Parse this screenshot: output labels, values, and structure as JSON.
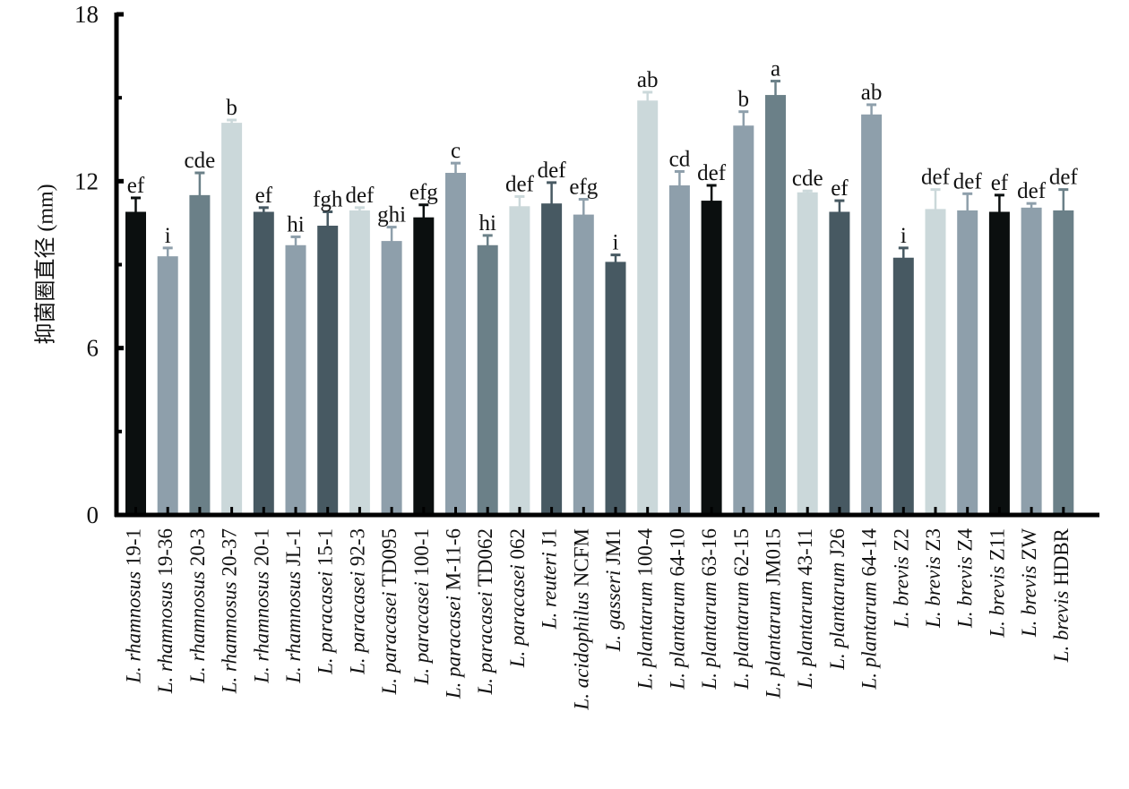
{
  "chart_data": {
    "type": "bar",
    "title": "",
    "xlabel": "",
    "ylabel": "抑菌圈直径 (mm)",
    "ylim": [
      0,
      18
    ],
    "yticks": [
      0,
      6,
      12,
      18
    ],
    "yminor_ticks": [
      3,
      9,
      15
    ],
    "grid": false,
    "legend": "none",
    "categories": [
      {
        "genus": "L.",
        "species": "rhamnosus",
        "strain": "19-1"
      },
      {
        "genus": "L.",
        "species": "rhamnosus",
        "strain": "19-36"
      },
      {
        "genus": "L.",
        "species": "rhamnosus",
        "strain": "20-3"
      },
      {
        "genus": "L.",
        "species": "rhamnosus",
        "strain": "20-37"
      },
      {
        "genus": "L.",
        "species": "rhamnosus",
        "strain": "20-1"
      },
      {
        "genus": "L.",
        "species": "rhamnosus",
        "strain": "JL-1"
      },
      {
        "genus": "L.",
        "species": "paracasei",
        "strain": "15-1"
      },
      {
        "genus": "L.",
        "species": "paracasei",
        "strain": "92-3"
      },
      {
        "genus": "L.",
        "species": "paracasei",
        "strain": "TD095"
      },
      {
        "genus": "L.",
        "species": "paracasei",
        "strain": "100-1"
      },
      {
        "genus": "L.",
        "species": "paracasei",
        "strain": "M-11-6"
      },
      {
        "genus": "L.",
        "species": "paracasei",
        "strain": "TD062"
      },
      {
        "genus": "L.",
        "species": "paracasei",
        "strain": "062"
      },
      {
        "genus": "L.",
        "species": "reuteri",
        "strain": "J1"
      },
      {
        "genus": "L.",
        "species": "acidophilus",
        "strain": "NCFM"
      },
      {
        "genus": "L.",
        "species": "gasseri",
        "strain": "JM1"
      },
      {
        "genus": "L.",
        "species": "plantarum",
        "strain": "100-4"
      },
      {
        "genus": "L.",
        "species": "plantarum",
        "strain": "64-10"
      },
      {
        "genus": "L.",
        "species": "plantarum",
        "strain": "63-16"
      },
      {
        "genus": "L.",
        "species": "plantarum",
        "strain": "62-15"
      },
      {
        "genus": "L.",
        "species": "plantarum",
        "strain": "JM015"
      },
      {
        "genus": "L.",
        "species": "plantarum",
        "strain": "43-11"
      },
      {
        "genus": "L.",
        "species": "plantarum",
        "strain": "J26"
      },
      {
        "genus": "L.",
        "species": "plantarum",
        "strain": "64-14"
      },
      {
        "genus": "L.",
        "species": "brevis",
        "strain": "Z2"
      },
      {
        "genus": "L.",
        "species": "brevis",
        "strain": "Z3"
      },
      {
        "genus": "L.",
        "species": "brevis",
        "strain": "Z4"
      },
      {
        "genus": "L.",
        "species": "brevis",
        "strain": "Z11"
      },
      {
        "genus": "L.",
        "species": "brevis",
        "strain": "ZW"
      },
      {
        "genus": "L.",
        "species": "brevis",
        "strain": "HDBR"
      }
    ],
    "values": [
      10.9,
      9.3,
      11.5,
      14.1,
      10.9,
      9.7,
      10.4,
      10.95,
      9.85,
      10.7,
      12.3,
      9.7,
      11.1,
      11.2,
      10.8,
      9.1,
      14.9,
      11.85,
      11.3,
      14.0,
      15.1,
      11.6,
      10.9,
      14.4,
      9.25,
      11.0,
      10.95,
      10.9,
      11.05,
      10.95
    ],
    "errors": [
      0.5,
      0.3,
      0.8,
      0.1,
      0.15,
      0.3,
      0.5,
      0.1,
      0.5,
      0.45,
      0.35,
      0.35,
      0.35,
      0.75,
      0.55,
      0.25,
      0.3,
      0.5,
      0.55,
      0.5,
      0.5,
      0.05,
      0.4,
      0.35,
      0.35,
      0.7,
      0.6,
      0.6,
      0.15,
      0.75
    ],
    "significance": [
      "ef",
      "i",
      "cde",
      "b",
      "ef",
      "hi",
      "fgh",
      "def",
      "ghi",
      "efg",
      "c",
      "hi",
      "def",
      "def",
      "efg",
      "i",
      "ab",
      "cd",
      "def",
      "b",
      "a",
      "cde",
      "ef",
      "ab",
      "i",
      "def",
      "def",
      "ef",
      "def",
      "def"
    ],
    "bar_color_cycle": [
      "#0b0f0f",
      "#8e9fab",
      "#6b8088",
      "#cbd8da",
      "#475962",
      "#8e9fab",
      "#475962",
      "#cbd8da",
      "#8e9fab"
    ]
  }
}
